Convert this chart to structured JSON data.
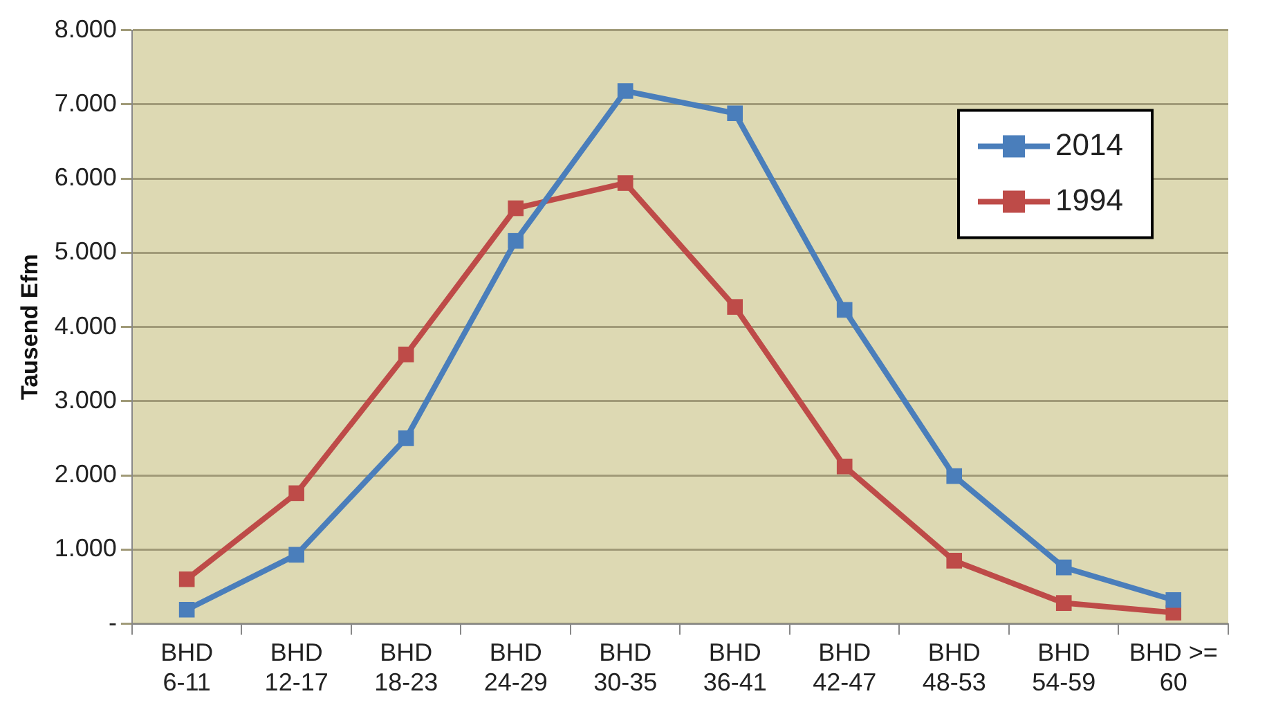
{
  "chart_data": {
    "type": "line",
    "ylabel": "Tausend Efm",
    "categories": [
      "BHD 6-11",
      "BHD 12-17",
      "BHD 18-23",
      "BHD 24-29",
      "BHD 30-35",
      "BHD 36-41",
      "BHD 42-47",
      "BHD 48-53",
      "BHD 54-59",
      "BHD >= 60"
    ],
    "series": [
      {
        "name": "2014",
        "color": "#4a7ebb",
        "values": [
          190,
          930,
          2500,
          5160,
          7180,
          6880,
          4230,
          1990,
          760,
          320
        ]
      },
      {
        "name": "1994",
        "color": "#be4b48",
        "values": [
          600,
          1760,
          3630,
          5600,
          5940,
          4270,
          2120,
          850,
          280,
          150
        ]
      }
    ],
    "ylim": [
      0,
      8000
    ],
    "yticks": [
      {
        "value": 0,
        "label": "-"
      },
      {
        "value": 1000,
        "label": "1.000"
      },
      {
        "value": 2000,
        "label": "2.000"
      },
      {
        "value": 3000,
        "label": "3.000"
      },
      {
        "value": 4000,
        "label": "4.000"
      },
      {
        "value": 5000,
        "label": "5.000"
      },
      {
        "value": 6000,
        "label": "6.000"
      },
      {
        "value": 7000,
        "label": "7.000"
      },
      {
        "value": 8000,
        "label": "8.000"
      }
    ],
    "grid": "y",
    "legend": "top right",
    "marker": "square",
    "line_style": "solid"
  }
}
